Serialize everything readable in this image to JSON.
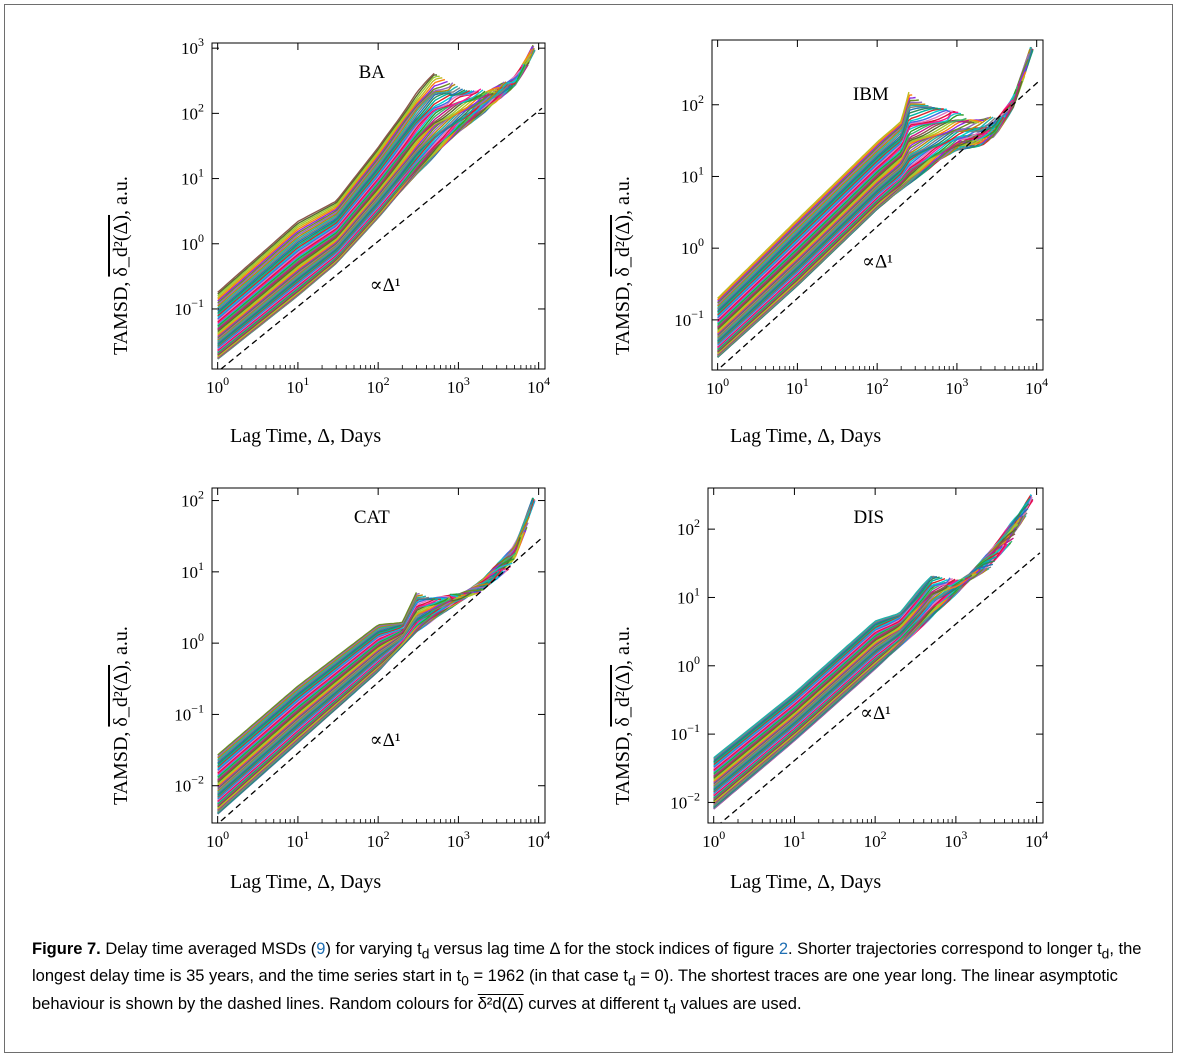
{
  "chart_data": [
    {
      "type": "line",
      "panel_label": "BA",
      "annotation": "∝Δ¹",
      "xlabel": "Lag Time, Δ, Days",
      "ylabel_prefix": "TAMSD, ",
      "ylabel_symbol": "δ_d²(Δ)",
      "ylabel_suffix": ", a.u.",
      "xscale": "log",
      "yscale": "log",
      "xlim": [
        0.85,
        12000
      ],
      "ylim": [
        0.012,
        1200
      ],
      "xticks": [
        "10^0",
        "10^1",
        "10^2",
        "10^3",
        "10^4"
      ],
      "yticks": [
        "10^-1",
        "10^0",
        "10^1",
        "10^2",
        "10^3"
      ],
      "bundle_low": {
        "x": [
          1,
          10,
          30,
          100,
          300,
          1000,
          2000,
          5000,
          7000,
          9000
        ],
        "y": [
          0.017,
          0.16,
          0.5,
          2.5,
          12,
          55,
          110,
          300,
          600,
          1100
        ]
      },
      "bundle_high": {
        "x": [
          1,
          10,
          30,
          100,
          300,
          500
        ],
        "y": [
          0.18,
          2.2,
          4.5,
          30,
          200,
          400
        ]
      },
      "reference_line": {
        "x": [
          1.1,
          11000
        ],
        "y": [
          0.012,
          120
        ]
      },
      "num_curves": 60
    },
    {
      "type": "line",
      "panel_label": "IBM",
      "annotation": "∝Δ¹",
      "xlabel": "Lag Time, Δ, Days",
      "ylabel_prefix": "TAMSD, ",
      "ylabel_symbol": "δ_d²(Δ)",
      "ylabel_suffix": ", a.u.",
      "xscale": "log",
      "yscale": "log",
      "xlim": [
        0.85,
        12000
      ],
      "ylim": [
        0.02,
        800
      ],
      "xticks": [
        "10^0",
        "10^1",
        "10^2",
        "10^3",
        "10^4"
      ],
      "yticks": [
        "10^-1",
        "10^0",
        "10^1",
        "10^2"
      ],
      "bundle_low": {
        "x": [
          1,
          10,
          100,
          500,
          1000,
          2000,
          3000,
          5000,
          9000
        ],
        "y": [
          0.03,
          0.3,
          3.5,
          15,
          25,
          30,
          40,
          100,
          700
        ]
      },
      "bundle_high": {
        "x": [
          1,
          10,
          100,
          200,
          250
        ],
        "y": [
          0.2,
          2.5,
          30,
          60,
          150
        ]
      },
      "reference_line": {
        "x": [
          1.1,
          11000
        ],
        "y": [
          0.022,
          220
        ]
      },
      "num_curves": 60
    },
    {
      "type": "line",
      "panel_label": "CAT",
      "annotation": "∝Δ¹",
      "xlabel": "Lag Time, Δ, Days",
      "ylabel_prefix": "TAMSD, ",
      "ylabel_symbol": "δ_d²(Δ)",
      "ylabel_suffix": ", a.u.",
      "xscale": "log",
      "yscale": "log",
      "xlim": [
        0.85,
        12000
      ],
      "ylim": [
        0.003,
        150
      ],
      "xticks": [
        "10^0",
        "10^1",
        "10^2",
        "10^3",
        "10^4"
      ],
      "yticks": [
        "10^-2",
        "10^-1",
        "10^0",
        "10^1",
        "10^2"
      ],
      "bundle_low": {
        "x": [
          1,
          10,
          100,
          300,
          1000,
          2000,
          5000,
          9000
        ],
        "y": [
          0.004,
          0.04,
          0.4,
          1.5,
          4,
          7,
          20,
          120
        ]
      },
      "bundle_high": {
        "x": [
          1,
          10,
          100,
          200,
          300
        ],
        "y": [
          0.027,
          0.25,
          1.8,
          2,
          5
        ]
      },
      "reference_line": {
        "x": [
          1.1,
          11000
        ],
        "y": [
          0.0032,
          30
        ]
      },
      "num_curves": 60
    },
    {
      "type": "line",
      "panel_label": "DIS",
      "annotation": "∝Δ¹",
      "xlabel": "Lag Time, Δ, Days",
      "ylabel_prefix": "TAMSD, ",
      "ylabel_symbol": "δ_d²(Δ)",
      "ylabel_suffix": ", a.u.",
      "xscale": "log",
      "yscale": "log",
      "xlim": [
        0.85,
        12000
      ],
      "ylim": [
        0.005,
        400
      ],
      "xticks": [
        "10^0",
        "10^1",
        "10^2",
        "10^3",
        "10^4"
      ],
      "yticks": [
        "10^-2",
        "10^-1",
        "10^0",
        "10^1",
        "10^2"
      ],
      "bundle_low": {
        "x": [
          1,
          10,
          100,
          300,
          1000,
          3000,
          6000,
          9000
        ],
        "y": [
          0.008,
          0.08,
          0.9,
          3,
          12,
          50,
          150,
          320
        ]
      },
      "bundle_high": {
        "x": [
          1,
          10,
          100,
          200,
          500
        ],
        "y": [
          0.045,
          0.4,
          4.5,
          6,
          20
        ]
      },
      "reference_line": {
        "x": [
          1.1,
          11000
        ],
        "y": [
          0.0045,
          45
        ]
      },
      "num_curves": 60
    }
  ],
  "caption": {
    "label": "Figure 7.",
    "text_1": " Delay time averaged MSDs (",
    "eq_ref": "9",
    "text_2": ") for varying t",
    "sub_d": "d",
    "text_3": " versus lag time Δ for the stock indices of figure ",
    "fig_ref": "2",
    "text_4": ". Shorter trajectories correspond to longer t",
    "text_5": ", the longest delay time is 35 years, and the time series start in t",
    "sub_0": "0",
    "text_6": " = 1962 (in that case t",
    "text_7": " = 0). The shortest traces are one year long. The linear asymptotic behaviour is shown by the dashed lines. Random colours for ",
    "symbol": "δ²d(Δ)",
    "text_8": " curves at different t",
    "text_9": " values are used."
  }
}
